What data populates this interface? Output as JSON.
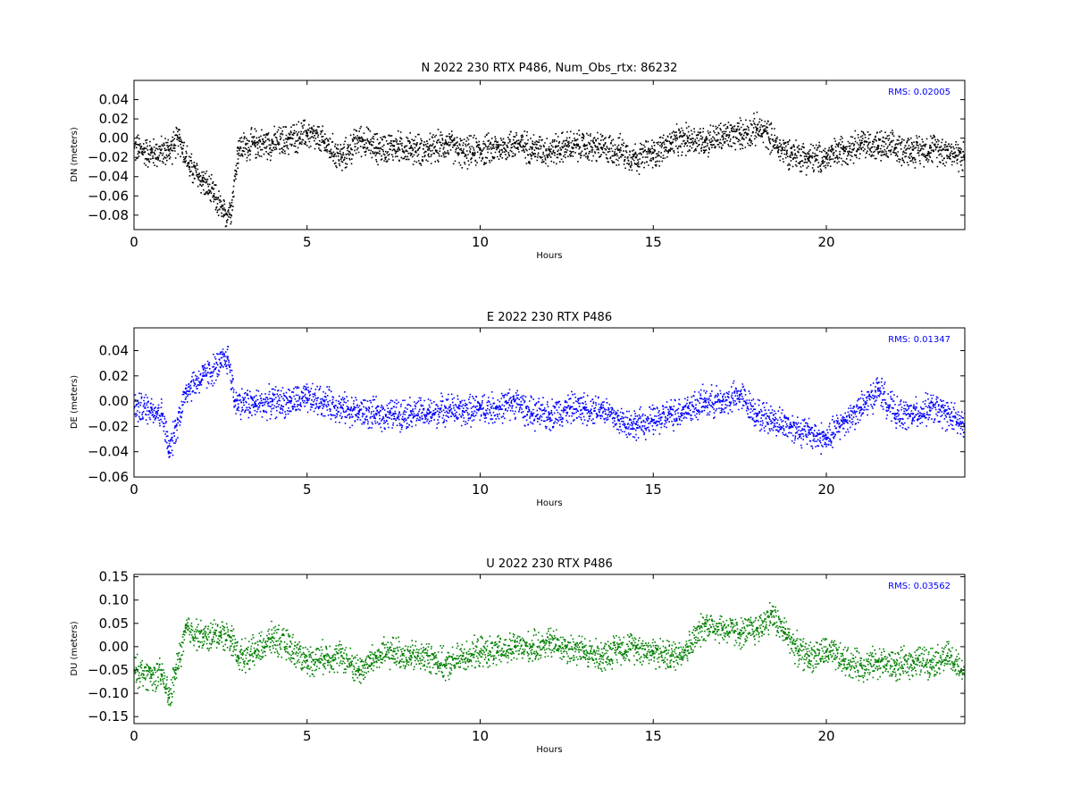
{
  "chart_data": [
    {
      "type": "scatter",
      "title": "N 2022 230 RTX  P486, Num_Obs_rtx: 86232",
      "xlabel": "Hours",
      "ylabel": "DN (meters)",
      "xlim": [
        0,
        24
      ],
      "ylim": [
        -0.095,
        0.06
      ],
      "xticks": [
        0,
        5,
        10,
        15,
        20
      ],
      "xtick_labels": [
        "0",
        "5",
        "10",
        "15",
        "20"
      ],
      "yticks": [
        -0.08,
        -0.06,
        -0.04,
        -0.02,
        0.0,
        0.02,
        0.04
      ],
      "ytick_labels": [
        "−0.08",
        "−0.06",
        "−0.04",
        "−0.02",
        "0.00",
        "0.02",
        "0.04"
      ],
      "annotation": "RMS:  0.02005",
      "annotation_color": "#0000ff",
      "color": "#000000",
      "series": [
        {
          "x": [
            0,
            0.5,
            1.0,
            1.3,
            1.6,
            2.0,
            2.3,
            2.6,
            2.8,
            3.0,
            3.5,
            4.0,
            4.5,
            5.0,
            5.5,
            6.0,
            6.5,
            7.0,
            7.5,
            8.0,
            8.5,
            9.0,
            9.5,
            10.0,
            10.5,
            11.0,
            11.5,
            12.0,
            12.5,
            13.0,
            13.5,
            14.0,
            14.5,
            15.0,
            15.5,
            16.0,
            16.5,
            17.0,
            17.5,
            18.0,
            18.3,
            18.6,
            19.0,
            19.5,
            20.0,
            20.5,
            21.0,
            21.5,
            22.0,
            22.5,
            23.0,
            23.5,
            24.0
          ],
          "y": [
            -0.01,
            -0.015,
            -0.012,
            0.0,
            -0.03,
            -0.045,
            -0.06,
            -0.08,
            -0.07,
            -0.01,
            -0.005,
            -0.005,
            0.0,
            0.005,
            -0.005,
            -0.02,
            0.0,
            -0.01,
            -0.008,
            -0.01,
            -0.012,
            -0.005,
            -0.015,
            -0.012,
            -0.01,
            -0.005,
            -0.01,
            -0.012,
            -0.008,
            -0.008,
            -0.01,
            -0.012,
            -0.02,
            -0.015,
            -0.005,
            0.0,
            -0.002,
            0.002,
            0.005,
            0.01,
            0.005,
            -0.01,
            -0.015,
            -0.02,
            -0.02,
            -0.01,
            -0.005,
            -0.008,
            -0.01,
            -0.012,
            -0.01,
            -0.012,
            -0.02
          ]
        }
      ]
    },
    {
      "type": "scatter",
      "title": "E 2022 230 RTX  P486",
      "xlabel": "Hours",
      "ylabel": "DE (meters)",
      "xlim": [
        0,
        24
      ],
      "ylim": [
        -0.06,
        0.058
      ],
      "xticks": [
        0,
        5,
        10,
        15,
        20
      ],
      "xtick_labels": [
        "0",
        "5",
        "10",
        "15",
        "20"
      ],
      "yticks": [
        -0.06,
        -0.04,
        -0.02,
        0.0,
        0.02,
        0.04
      ],
      "ytick_labels": [
        "−0.06",
        "−0.04",
        "−0.02",
        "0.00",
        "0.02",
        "0.04"
      ],
      "annotation": "RMS:  0.01347",
      "annotation_color": "#0000ff",
      "color": "#0000ff",
      "series": [
        {
          "x": [
            0,
            0.5,
            0.8,
            1.0,
            1.2,
            1.5,
            2.0,
            2.5,
            2.7,
            2.9,
            3.5,
            4.0,
            4.5,
            5.0,
            5.5,
            6.0,
            6.5,
            7.0,
            7.5,
            8.0,
            8.5,
            9.0,
            9.5,
            10.0,
            10.5,
            11.0,
            11.5,
            12.0,
            12.5,
            13.0,
            13.5,
            14.0,
            14.5,
            15.0,
            15.5,
            16.0,
            16.5,
            17.0,
            17.5,
            18.0,
            18.5,
            19.0,
            19.5,
            20.0,
            20.5,
            21.0,
            21.5,
            22.0,
            22.5,
            23.0,
            23.5,
            24.0
          ],
          "y": [
            -0.005,
            -0.005,
            -0.01,
            -0.04,
            -0.02,
            0.01,
            0.02,
            0.03,
            0.035,
            0.0,
            -0.002,
            0.0,
            0.0,
            0.002,
            0.0,
            -0.005,
            -0.008,
            -0.01,
            -0.01,
            -0.008,
            -0.01,
            -0.005,
            -0.008,
            -0.005,
            -0.005,
            0.0,
            -0.01,
            -0.01,
            -0.005,
            -0.005,
            -0.005,
            -0.015,
            -0.018,
            -0.015,
            -0.01,
            -0.005,
            0.0,
            0.0,
            0.005,
            -0.01,
            -0.015,
            -0.02,
            -0.025,
            -0.03,
            -0.015,
            -0.005,
            0.01,
            -0.01,
            -0.01,
            -0.005,
            -0.01,
            -0.02
          ]
        }
      ]
    },
    {
      "type": "scatter",
      "title": "U 2022 230 RTX  P486",
      "xlabel": "Hours",
      "ylabel": "DU (meters)",
      "xlim": [
        0,
        24
      ],
      "ylim": [
        -0.165,
        0.155
      ],
      "xticks": [
        0,
        5,
        10,
        15,
        20
      ],
      "xtick_labels": [
        "0",
        "5",
        "10",
        "15",
        "20"
      ],
      "yticks": [
        -0.15,
        -0.1,
        -0.05,
        0.0,
        0.05,
        0.1,
        0.15
      ],
      "ytick_labels": [
        "−0.15",
        "−0.10",
        "−0.05",
        "0.00",
        "0.05",
        "0.10",
        "0.15"
      ],
      "annotation": "RMS:  0.03562",
      "annotation_color": "#0000ff",
      "color": "#008000",
      "series": [
        {
          "x": [
            0,
            0.5,
            0.8,
            1.0,
            1.2,
            1.5,
            2.0,
            2.5,
            2.8,
            3.0,
            3.5,
            4.0,
            4.5,
            5.0,
            5.5,
            6.0,
            6.5,
            7.0,
            7.5,
            8.0,
            8.5,
            9.0,
            9.5,
            10.0,
            10.5,
            11.0,
            11.5,
            12.0,
            12.5,
            13.0,
            13.5,
            14.0,
            14.5,
            15.0,
            15.5,
            16.0,
            16.5,
            17.0,
            17.5,
            18.0,
            18.4,
            18.8,
            19.2,
            19.5,
            20.0,
            20.5,
            21.0,
            21.5,
            22.0,
            22.5,
            23.0,
            23.5,
            24.0
          ],
          "y": [
            -0.05,
            -0.06,
            -0.06,
            -0.11,
            -0.05,
            0.04,
            0.02,
            0.03,
            0.02,
            -0.02,
            -0.01,
            0.02,
            0.0,
            -0.03,
            -0.02,
            -0.02,
            -0.05,
            -0.02,
            -0.01,
            -0.02,
            -0.02,
            -0.04,
            -0.02,
            -0.01,
            -0.01,
            0.0,
            0.0,
            0.01,
            0.0,
            -0.01,
            -0.02,
            0.0,
            0.0,
            -0.01,
            -0.02,
            0.0,
            0.05,
            0.04,
            0.03,
            0.04,
            0.07,
            0.03,
            -0.01,
            -0.02,
            -0.01,
            -0.03,
            -0.04,
            -0.03,
            -0.04,
            -0.03,
            -0.03,
            -0.02,
            -0.06
          ]
        }
      ]
    }
  ]
}
